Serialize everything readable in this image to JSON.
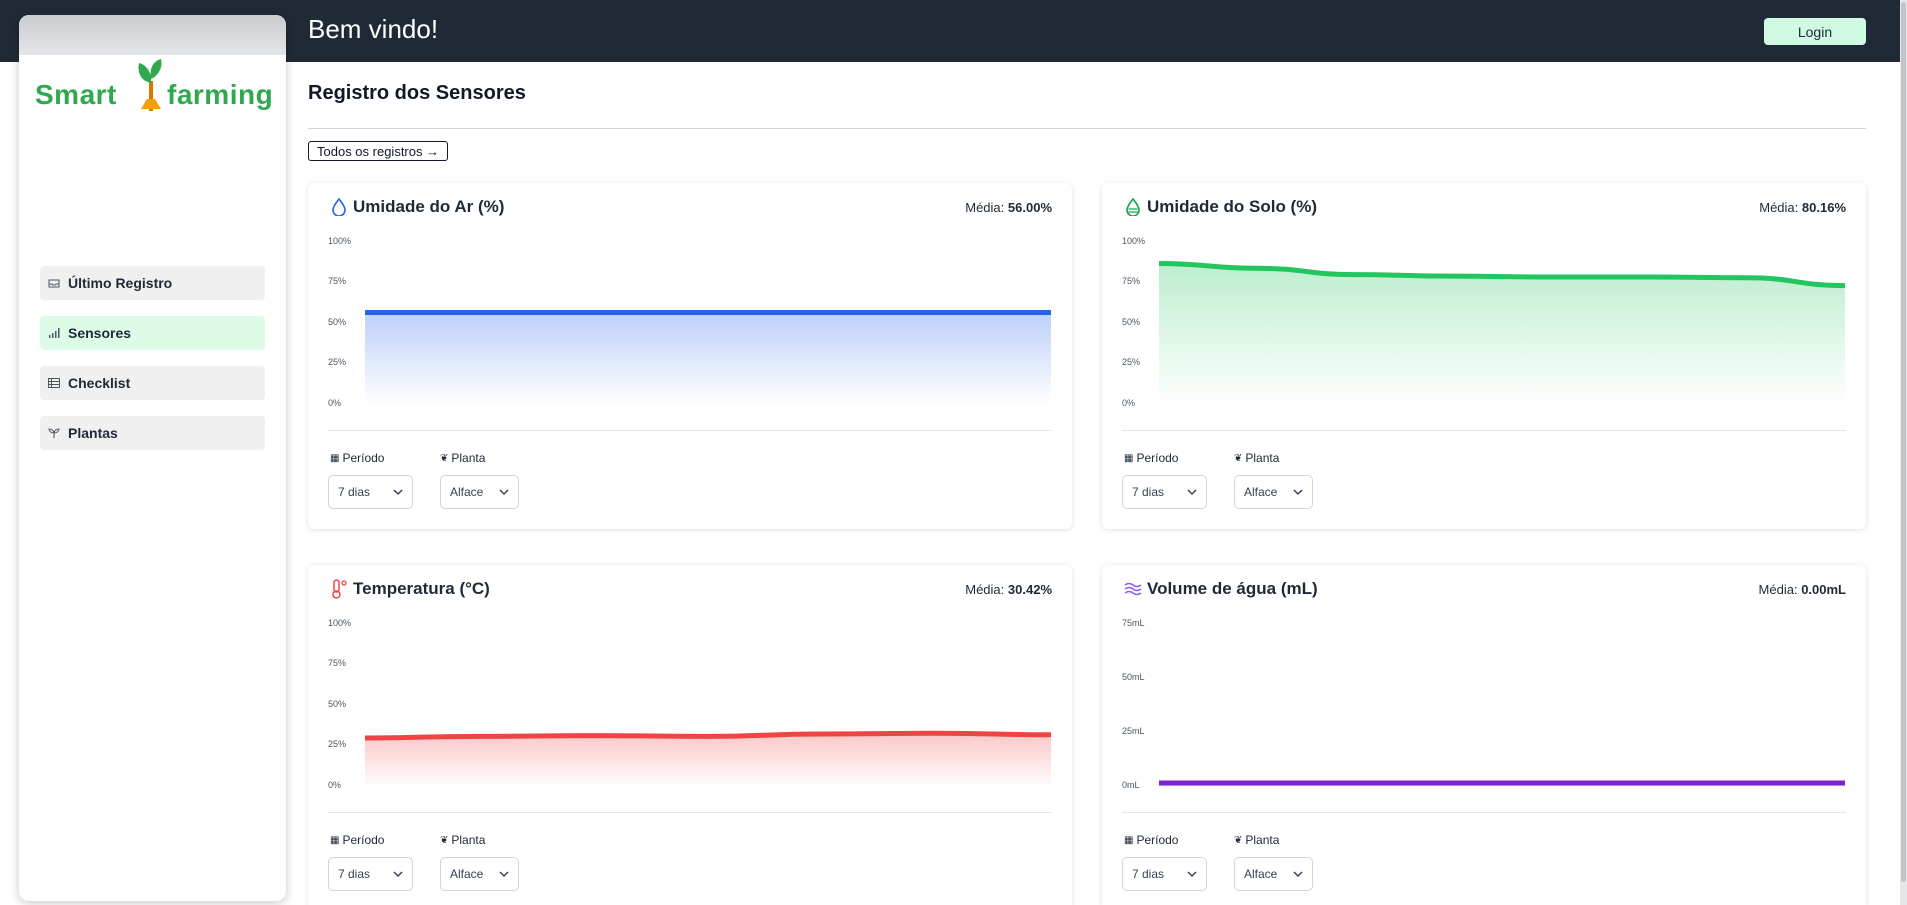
{
  "header": {
    "title": "Bem vindo!",
    "login_label": "Login"
  },
  "logo": {
    "left": "Smart",
    "right": "farming"
  },
  "sidebar": {
    "items": [
      {
        "label": "Último Registro",
        "icon": "inbox-icon",
        "active": false
      },
      {
        "label": "Sensores",
        "icon": "bar-chart-icon",
        "active": true
      },
      {
        "label": "Checklist",
        "icon": "table-icon",
        "active": false
      },
      {
        "label": "Plantas",
        "icon": "sprout-icon",
        "active": false
      }
    ]
  },
  "main": {
    "title": "Registro dos Sensores",
    "all_records_label": "Todos os registros →"
  },
  "filters": {
    "period_label": "Período",
    "plant_label": "Planta",
    "period_value": "7 dias",
    "plant_value": "Alface"
  },
  "cards": [
    {
      "title": "Umidade do Ar (%)",
      "icon": "droplet-icon",
      "avg_label": "Média:",
      "avg_value": "56.00%",
      "color": "#2563eb"
    },
    {
      "title": "Umidade do Solo (%)",
      "icon": "soil-droplet-icon",
      "avg_label": "Média:",
      "avg_value": "80.16%",
      "color": "#22c55e"
    },
    {
      "title": "Temperatura (°C)",
      "icon": "thermometer-icon",
      "avg_label": "Média:",
      "avg_value": "30.42%",
      "color": "#ef4444"
    },
    {
      "title": "Volume de água (mL)",
      "icon": "waves-icon",
      "avg_label": "Média:",
      "avg_value": "0.00mL",
      "color": "#7e22ce"
    }
  ],
  "chart_data": [
    {
      "type": "area",
      "title": "Umidade do Ar (%)",
      "ticks": [
        "100%",
        "75%",
        "50%",
        "25%",
        "0%"
      ],
      "ylim": [
        0,
        100
      ],
      "values": [
        56,
        56,
        56,
        56,
        56,
        56,
        56
      ],
      "color": "#2563eb"
    },
    {
      "type": "area",
      "title": "Umidade do Solo (%)",
      "ticks": [
        "100%",
        "75%",
        "50%",
        "25%",
        "0%"
      ],
      "ylim": [
        0,
        100
      ],
      "values": [
        87,
        84,
        80,
        79,
        78.5,
        78.5,
        78,
        73
      ],
      "color": "#22c55e"
    },
    {
      "type": "area",
      "title": "Temperatura (°C)",
      "ticks": [
        "100%",
        "75%",
        "50%",
        "25%",
        "0%"
      ],
      "ylim": [
        0,
        100
      ],
      "values": [
        28.5,
        29.5,
        30,
        29.5,
        31,
        31.5,
        30.5
      ],
      "color": "#ef4444"
    },
    {
      "type": "area",
      "title": "Volume de água (mL)",
      "ticks": [
        "75mL",
        "50mL",
        "25mL",
        "0mL"
      ],
      "ylim": [
        0,
        75
      ],
      "values": [
        0,
        0,
        0,
        0,
        0,
        0,
        0
      ],
      "color": "#7e22ce"
    }
  ]
}
